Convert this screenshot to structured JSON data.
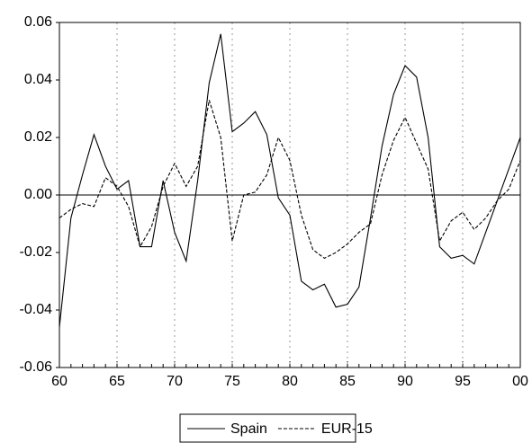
{
  "chart_data": {
    "type": "line",
    "x": [
      1960,
      1961,
      1962,
      1963,
      1964,
      1965,
      1966,
      1967,
      1968,
      1969,
      1970,
      1971,
      1972,
      1973,
      1974,
      1975,
      1976,
      1977,
      1978,
      1979,
      1980,
      1981,
      1982,
      1983,
      1984,
      1985,
      1986,
      1987,
      1988,
      1989,
      1990,
      1991,
      1992,
      1993,
      1994,
      1995,
      1996,
      1997,
      1998,
      1999,
      2000
    ],
    "series": [
      {
        "name": "Spain",
        "color": "#000000",
        "dash": false,
        "values": [
          -0.046,
          -0.008,
          0.007,
          0.021,
          0.01,
          0.002,
          0.005,
          -0.018,
          -0.018,
          0.005,
          -0.013,
          -0.023,
          0.005,
          0.039,
          0.056,
          0.022,
          0.025,
          0.029,
          0.021,
          -0.001,
          -0.007,
          -0.03,
          -0.033,
          -0.031,
          -0.039,
          -0.038,
          -0.032,
          -0.008,
          0.017,
          0.035,
          0.045,
          0.041,
          0.02,
          -0.018,
          -0.022,
          -0.021,
          -0.024,
          -0.013,
          -0.002,
          0.009,
          0.02
        ]
      },
      {
        "name": "EUR-15",
        "color": "#000000",
        "dash": true,
        "values": [
          -0.008,
          -0.005,
          -0.003,
          -0.004,
          0.006,
          0.003,
          -0.004,
          -0.018,
          -0.011,
          0.003,
          0.011,
          0.003,
          0.01,
          0.033,
          0.02,
          -0.016,
          0.0,
          0.001,
          0.007,
          0.02,
          0.012,
          -0.007,
          -0.019,
          -0.022,
          -0.02,
          -0.017,
          -0.013,
          -0.01,
          0.007,
          0.019,
          0.027,
          0.018,
          0.009,
          -0.016,
          -0.009,
          -0.006,
          -0.012,
          -0.008,
          -0.002,
          0.002,
          0.012
        ]
      }
    ],
    "xlim": [
      1960,
      2000
    ],
    "xticks": [
      {
        "value": 1960,
        "label": "60"
      },
      {
        "value": 1965,
        "label": "65"
      },
      {
        "value": 1970,
        "label": "70"
      },
      {
        "value": 1975,
        "label": "75"
      },
      {
        "value": 1980,
        "label": "80"
      },
      {
        "value": 1985,
        "label": "85"
      },
      {
        "value": 1990,
        "label": "90"
      },
      {
        "value": 1995,
        "label": "95"
      },
      {
        "value": 2000,
        "label": "00"
      }
    ],
    "ylim": [
      -0.06,
      0.06
    ],
    "yticks": [
      -0.06,
      -0.04,
      -0.02,
      {
        "value": 0,
        "label": "0.00"
      },
      0.02,
      0.04,
      0.06
    ],
    "grid": "x",
    "zero_line": true,
    "legend": "bottom"
  }
}
